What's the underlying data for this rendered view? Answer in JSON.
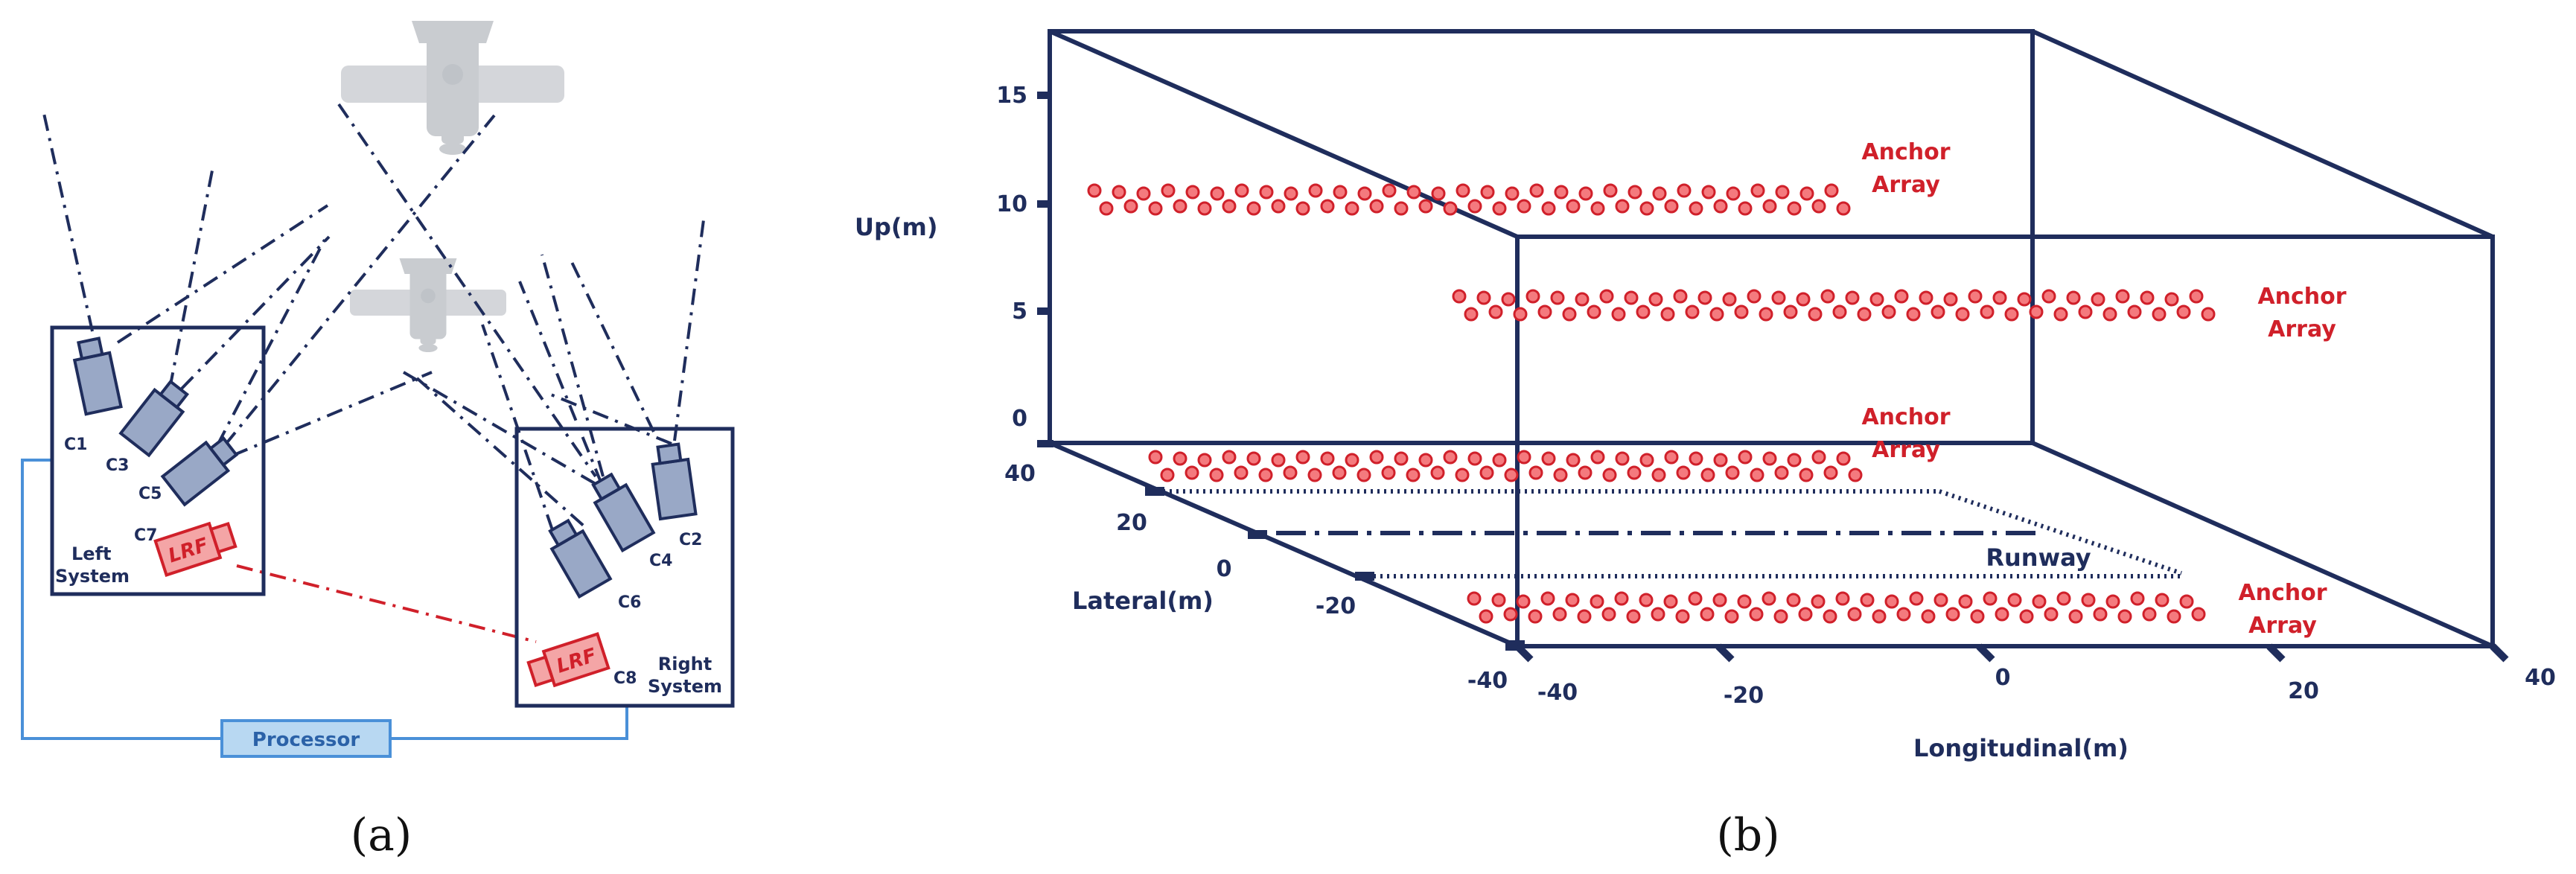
{
  "panel_a": {
    "caption": "(a)",
    "left_box_label": [
      "Left",
      "System"
    ],
    "right_box_label": [
      "Right",
      "System"
    ],
    "processor_label": "Processor",
    "cameras": [
      "C1",
      "C2",
      "C3",
      "C4",
      "C5",
      "C6",
      "C7",
      "C8"
    ],
    "lrf_label": "LRF",
    "colors": {
      "navy": "#1f2d5c",
      "camera_fill": "#99a8c6",
      "lrf_fill": "#f4a5a6",
      "lrf_red": "#d0202a",
      "processor_fill": "#b8d8f2",
      "wire": "#4a90d8"
    }
  },
  "panel_b": {
    "caption": "(b)",
    "axis_up_label": "Up(m)",
    "axis_lateral_label": "Lateral(m)",
    "axis_longitudinal_label": "Longitudinal(m)",
    "up_ticks": [
      "15",
      "10",
      "5",
      "0"
    ],
    "lateral_ticks": [
      "40",
      "20",
      "0",
      "-20",
      "-40"
    ],
    "longitudinal_ticks": [
      "-40",
      "-20",
      "0",
      "20",
      "40"
    ],
    "anchor_label_1": [
      "Anchor",
      "Array"
    ],
    "anchor_label_2": [
      "Anchor",
      "Array"
    ],
    "anchor_label_3": [
      "Anchor",
      "Array"
    ],
    "anchor_label_4": [
      "Anchor",
      "Array"
    ],
    "runway_label": "Runway",
    "colors": {
      "frame": "#1f2d5c",
      "anchor": "#d0202a",
      "anchor_fill": "#f47a7e"
    }
  }
}
